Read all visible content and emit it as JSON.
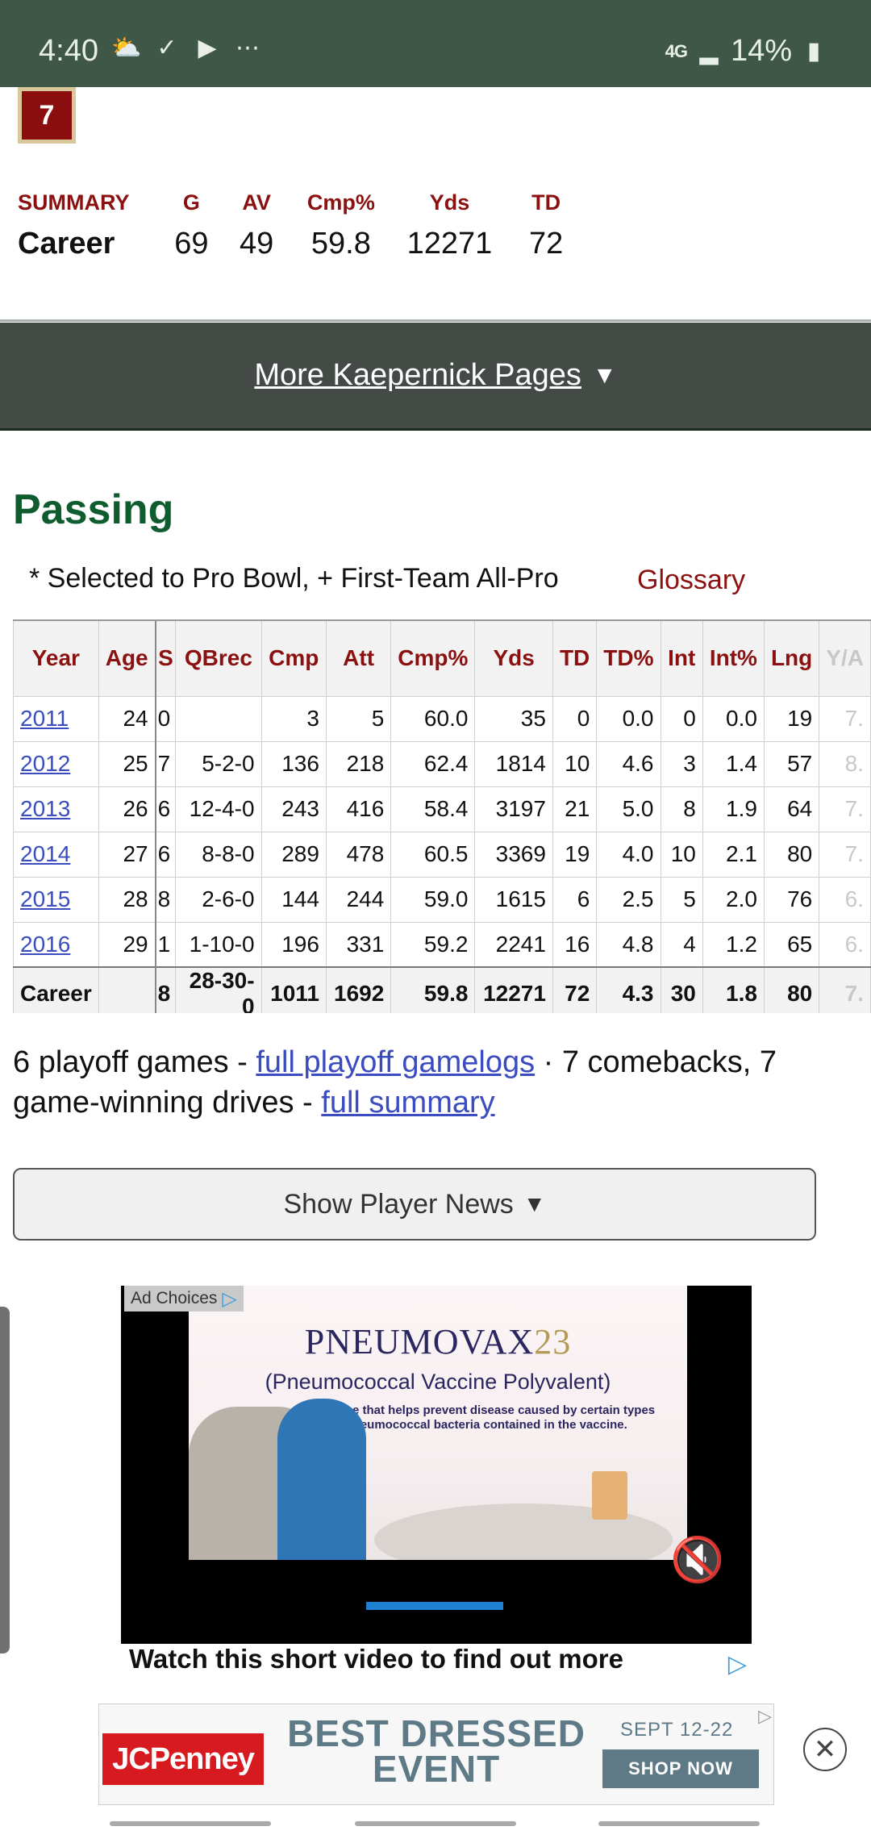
{
  "status_bar": {
    "time": "4:40",
    "network": "4G",
    "battery": "14%",
    "icons": [
      "weather-icon",
      "check-icon",
      "youtube-icon",
      "more-dots-icon",
      "signal-icon",
      "battery-icon"
    ]
  },
  "badge": {
    "value": "7"
  },
  "summary": {
    "headers": [
      "SUMMARY",
      "G",
      "AV",
      "Cmp%",
      "Yds",
      "TD"
    ],
    "values": [
      "Career",
      "69",
      "49",
      "59.8",
      "12271",
      "72"
    ]
  },
  "more_pages": {
    "label": "More Kaepernick Pages"
  },
  "passing": {
    "title": "Passing",
    "legend": "* Selected to Pro Bowl, + First-Team All-Pro",
    "glossary": "Glossary",
    "columns": [
      "Year",
      "Age",
      "S",
      "QBrec",
      "Cmp",
      "Att",
      "Cmp%",
      "Yds",
      "TD",
      "TD%",
      "Int",
      "Int%",
      "Lng",
      "Y/A"
    ],
    "rows": [
      [
        "2011",
        "24",
        "0",
        "",
        "3",
        "5",
        "60.0",
        "35",
        "0",
        "0.0",
        "0",
        "0.0",
        "19",
        "7."
      ],
      [
        "2012",
        "25",
        "7",
        "5-2-0",
        "136",
        "218",
        "62.4",
        "1814",
        "10",
        "4.6",
        "3",
        "1.4",
        "57",
        "8."
      ],
      [
        "2013",
        "26",
        "6",
        "12-4-0",
        "243",
        "416",
        "58.4",
        "3197",
        "21",
        "5.0",
        "8",
        "1.9",
        "64",
        "7."
      ],
      [
        "2014",
        "27",
        "6",
        "8-8-0",
        "289",
        "478",
        "60.5",
        "3369",
        "19",
        "4.0",
        "10",
        "2.1",
        "80",
        "7."
      ],
      [
        "2015",
        "28",
        "8",
        "2-6-0",
        "144",
        "244",
        "59.0",
        "1615",
        "6",
        "2.5",
        "5",
        "2.0",
        "76",
        "6."
      ],
      [
        "2016",
        "29",
        "1",
        "1-10-0",
        "196",
        "331",
        "59.2",
        "2241",
        "16",
        "4.8",
        "4",
        "1.2",
        "65",
        "6."
      ]
    ],
    "career": [
      "Career",
      "",
      "8",
      "28-30-0",
      "1011",
      "1692",
      "59.8",
      "12271",
      "72",
      "4.3",
      "30",
      "1.8",
      "80",
      "7."
    ]
  },
  "playoff": {
    "prefix": "6 playoff games - ",
    "gamelogs_link": "full playoff gamelogs",
    "middle": " · 7 comebacks, 7 game-winning drives - ",
    "summary_link": "full summary"
  },
  "player_news": {
    "label": "Show Player News"
  },
  "video_ad": {
    "ad_choices": "Ad Choices",
    "brand": "PNEUMOVAX",
    "brand_num": "23",
    "subtitle": "(Pneumococcal Vaccine Polyvalent)",
    "description": "A vaccine that helps prevent disease caused by certain types of pneumococcal bacteria contained in the vaccine.",
    "caption": "Watch this short video to find out more",
    "progress": 0.34
  },
  "banner_ad": {
    "brand": "JCPenney",
    "headline": "BEST DRESSED EVENT",
    "dates": "SEPT 12-22",
    "cta": "SHOP NOW"
  }
}
